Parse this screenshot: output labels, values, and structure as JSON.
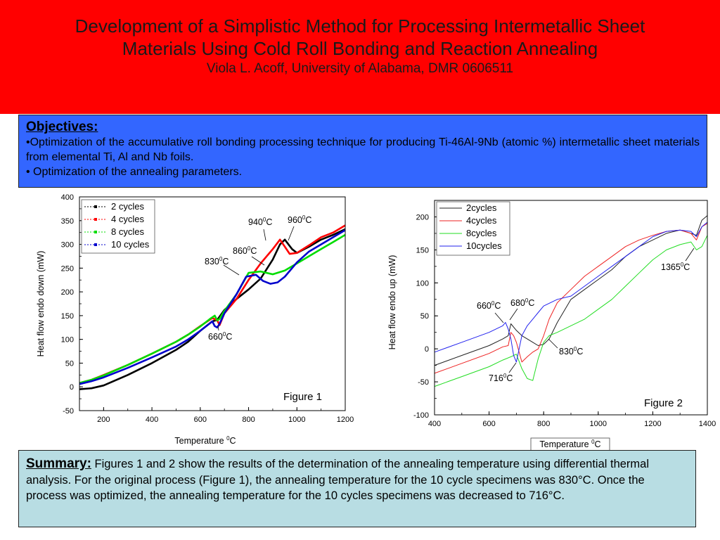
{
  "header": {
    "title_line1": "Development of a Simplistic Method for Processing Intermetallic Sheet",
    "title_line2": "Materials Using Cold Roll Bonding and Reaction Annealing",
    "author": "Viola L. Acoff, University of Alabama, DMR 0606511"
  },
  "objectives": {
    "heading": "Objectives:",
    "bullet1": "•Optimization of the accumulative roll bonding processing technique for producing Ti-46Al-9Nb (atomic %) intermetallic sheet materials from elemental Ti, Al and Nb foils.",
    "bullet2": "• Optimization of the annealing parameters."
  },
  "summary": {
    "heading": "Summary:",
    "text": "Figures 1 and  2 show the results of the determination of the annealing temperature using differential thermal analysis.  For the original process (Figure 1), the annealing temperature for the 10 cycle specimens was 830°C. Once the process was optimized, the annealing temperature for the 10 cycles specimens was decreased to 716°C."
  },
  "colors": {
    "header_bg": "#ff0000",
    "objectives_bg": "#3366ff",
    "summary_bg": "#b8dde3"
  },
  "chart_data": [
    {
      "type": "line",
      "xlabel": "Temperature 0C",
      "ylabel": "Heat flow endo down (mW)",
      "xlim": [
        100,
        1200
      ],
      "ylim": [
        -50,
        400
      ],
      "xticks": [
        200,
        400,
        600,
        800,
        1000,
        1200
      ],
      "yticks": [
        -50,
        0,
        50,
        100,
        150,
        200,
        250,
        300,
        350,
        400
      ],
      "legend": "top-left",
      "caption": "Figure 1",
      "series": [
        {
          "name": "2 cycles",
          "color": "#000000",
          "x": [
            100,
            150,
            200,
            300,
            400,
            500,
            550,
            600,
            650,
            670,
            700,
            750,
            800,
            850,
            900,
            930,
            950,
            980,
            1000,
            1050,
            1100,
            1150,
            1200
          ],
          "y": [
            -5,
            -3,
            3,
            25,
            50,
            78,
            95,
            118,
            138,
            141,
            162,
            185,
            205,
            228,
            268,
            300,
            310,
            290,
            282,
            295,
            310,
            320,
            332
          ]
        },
        {
          "name": "4 cycles",
          "color": "#ff0000",
          "x": [
            100,
            150,
            200,
            300,
            400,
            500,
            550,
            600,
            650,
            670,
            680,
            700,
            750,
            800,
            850,
            900,
            930,
            950,
            970,
            1000,
            1050,
            1100,
            1150,
            1200
          ],
          "y": [
            8,
            15,
            25,
            46,
            70,
            95,
            110,
            128,
            145,
            140,
            130,
            155,
            185,
            225,
            260,
            290,
            310,
            295,
            280,
            282,
            298,
            315,
            325,
            340
          ]
        },
        {
          "name": "8 cycles",
          "color": "#00dd00",
          "x": [
            100,
            150,
            200,
            300,
            400,
            500,
            550,
            600,
            640,
            660,
            670,
            680,
            700,
            750,
            800,
            850,
            900,
            950,
            1000,
            1050,
            1100,
            1150,
            1200
          ],
          "y": [
            8,
            15,
            24,
            46,
            70,
            95,
            110,
            127,
            143,
            150,
            140,
            143,
            160,
            195,
            240,
            243,
            237,
            245,
            260,
            275,
            290,
            305,
            320
          ]
        },
        {
          "name": "10 cycles",
          "color": "#0000cc",
          "x": [
            100,
            150,
            200,
            300,
            400,
            500,
            550,
            600,
            650,
            660,
            670,
            680,
            700,
            750,
            790,
            830,
            860,
            890,
            920,
            950,
            1000,
            1050,
            1100,
            1150,
            1200
          ],
          "y": [
            6,
            12,
            20,
            40,
            62,
            85,
            100,
            118,
            138,
            128,
            125,
            133,
            155,
            195,
            232,
            236,
            223,
            217,
            220,
            232,
            262,
            285,
            300,
            315,
            330
          ]
        }
      ],
      "annotations": [
        "940⁰C",
        "960⁰C",
        "860⁰C",
        "830⁰C",
        "660⁰C"
      ]
    },
    {
      "type": "line",
      "xlabel": "Temperature 0C",
      "ylabel": "Heat flow endo up (mW)",
      "xlim": [
        400,
        1400
      ],
      "ylim": [
        -100,
        225
      ],
      "xticks": [
        400,
        600,
        800,
        1000,
        1200,
        1400
      ],
      "yticks": [
        -100,
        -50,
        0,
        50,
        100,
        150,
        200
      ],
      "legend": "top-left",
      "caption": "Figure 2",
      "series": [
        {
          "name": "2cycles",
          "color": "#222222",
          "x": [
            400,
            500,
            600,
            650,
            670,
            680,
            700,
            720,
            740,
            760,
            780,
            800,
            820,
            850,
            900,
            950,
            1000,
            1050,
            1100,
            1150,
            1200,
            1250,
            1300,
            1340,
            1360,
            1380,
            1400
          ],
          "y": [
            -25,
            -10,
            5,
            15,
            20,
            38,
            28,
            20,
            15,
            10,
            5,
            7,
            15,
            40,
            75,
            90,
            105,
            120,
            140,
            155,
            165,
            175,
            180,
            175,
            172,
            195,
            202
          ]
        },
        {
          "name": "4cycles",
          "color": "#ee2222",
          "x": [
            400,
            500,
            600,
            650,
            670,
            680,
            690,
            700,
            710,
            720,
            740,
            760,
            780,
            800,
            820,
            850,
            900,
            950,
            1000,
            1050,
            1100,
            1150,
            1200,
            1250,
            1300,
            1340,
            1360,
            1380,
            1400
          ],
          "y": [
            -37,
            -22,
            -7,
            3,
            5,
            25,
            20,
            10,
            -5,
            -20,
            -12,
            -5,
            0,
            20,
            45,
            70,
            90,
            110,
            125,
            140,
            155,
            165,
            172,
            178,
            180,
            175,
            165,
            185,
            190
          ]
        },
        {
          "name": "8cycles",
          "color": "#22dd22",
          "x": [
            400,
            500,
            600,
            650,
            680,
            700,
            720,
            740,
            760,
            780,
            800,
            820,
            850,
            900,
            950,
            1000,
            1050,
            1100,
            1150,
            1200,
            1250,
            1300,
            1340,
            1360,
            1380,
            1400
          ],
          "y": [
            -57,
            -42,
            -27,
            -17,
            -12,
            -8,
            -30,
            -45,
            -48,
            -15,
            10,
            20,
            25,
            35,
            45,
            60,
            75,
            95,
            115,
            135,
            150,
            158,
            162,
            150,
            155,
            172
          ]
        },
        {
          "name": "10cycles",
          "color": "#2222ee",
          "x": [
            400,
            500,
            600,
            650,
            660,
            670,
            680,
            690,
            700,
            710,
            720,
            740,
            760,
            780,
            800,
            850,
            900,
            950,
            1000,
            1050,
            1100,
            1150,
            1200,
            1250,
            1300,
            1340,
            1360,
            1380,
            1400
          ],
          "y": [
            -5,
            10,
            25,
            35,
            40,
            30,
            15,
            -10,
            -20,
            0,
            20,
            35,
            45,
            55,
            65,
            75,
            80,
            95,
            110,
            125,
            140,
            155,
            170,
            178,
            180,
            178,
            170,
            185,
            192
          ]
        }
      ],
      "annotations": [
        "660⁰C",
        "680⁰C",
        "1365⁰C",
        "830⁰C",
        "716⁰C"
      ]
    }
  ]
}
